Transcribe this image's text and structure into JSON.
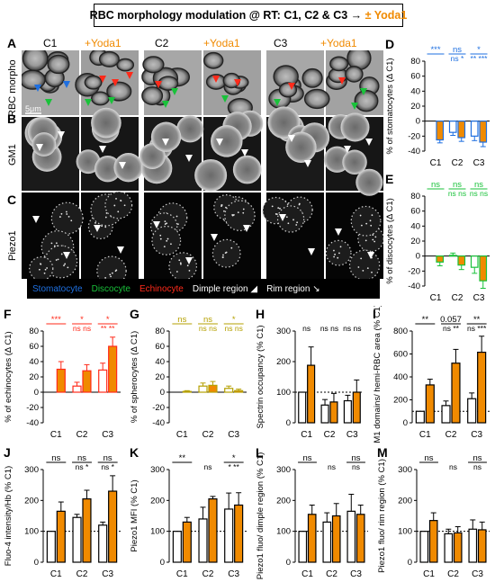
{
  "title": {
    "prefix": "RBC morphology modulation @ RT: C1, C2 & C3 → ",
    "highlight": "± Yoda1"
  },
  "panel_letters": [
    "A",
    "B",
    "C",
    "D",
    "E",
    "F",
    "G",
    "H",
    "I",
    "J",
    "K",
    "L",
    "M"
  ],
  "columns": [
    "C1",
    "+Yoda1",
    "C2",
    "+Yoda1",
    "C3",
    "+Yoda1"
  ],
  "rows": [
    "RBC morpho",
    "GM1",
    "Piezo1"
  ],
  "scale_label": "5μm",
  "legend": {
    "stomatocyte": "Stomatocyte",
    "discocyte": "Discocyte",
    "echinocyte": "Echinocyte",
    "dimple": "Dimple region",
    "rim": "Rim region"
  },
  "colors": {
    "control": "#ffffff",
    "yoda1": "#f08a00",
    "stomatocyte": "#1e6fe0",
    "discocyte": "#19c23a",
    "echinocyte": "#ff2a1a",
    "spherocyte": "#b5a000"
  },
  "chart_data": [
    {
      "id": "D",
      "type": "bar",
      "categories": [
        "C1",
        "C2",
        "C3"
      ],
      "ylabel": "% of stomatocytes (Δ C1)",
      "ylim": [
        -40,
        80
      ],
      "yticks": [
        -40,
        -20,
        0,
        20,
        40,
        60,
        80
      ],
      "baseline": 0,
      "series": [
        {
          "values": [
            0,
            -15,
            -20
          ],
          "err": [
            0,
            4,
            6
          ]
        },
        {
          "values": [
            -25,
            -22,
            -28
          ],
          "err": [
            4,
            5,
            6
          ]
        }
      ],
      "sig_top": [
        "***",
        "ns",
        "*"
      ],
      "sig_bottom": [
        "",
        "ns *",
        "** ***"
      ],
      "sig_color": "#1e6fe0",
      "bar_color": "#1e6fe0",
      "fill2": "#f08a00"
    },
    {
      "id": "E",
      "type": "bar",
      "categories": [
        "C1",
        "C2",
        "C3"
      ],
      "ylabel": "% of discocytes (Δ C1)",
      "ylim": [
        -40,
        80
      ],
      "yticks": [
        -40,
        -20,
        0,
        20,
        40,
        60,
        80
      ],
      "baseline": 0,
      "series": [
        {
          "values": [
            0,
            1,
            -15
          ],
          "err": [
            0,
            3,
            8
          ]
        },
        {
          "values": [
            -8,
            -12,
            -33
          ],
          "err": [
            5,
            6,
            10
          ]
        }
      ],
      "sig_top": [
        "ns",
        "ns",
        "ns"
      ],
      "sig_bottom": [
        "",
        "ns ns",
        "ns ns"
      ],
      "sig_color": "#19c23a",
      "bar_color": "#19c23a",
      "fill2": "#f08a00"
    },
    {
      "id": "F",
      "type": "bar",
      "categories": [
        "C1",
        "C2",
        "C3"
      ],
      "ylabel": "% of echinocytes (Δ C1)",
      "ylim": [
        -40,
        80
      ],
      "yticks": [
        -40,
        -20,
        0,
        20,
        40,
        60,
        80
      ],
      "baseline": 0,
      "series": [
        {
          "values": [
            0,
            8,
            29
          ],
          "err": [
            0,
            5,
            9
          ]
        },
        {
          "values": [
            30,
            28,
            60
          ],
          "err": [
            10,
            8,
            12
          ]
        }
      ],
      "sig_top": [
        "***",
        "*",
        "*"
      ],
      "sig_bottom": [
        "",
        "ns ns",
        "** **"
      ],
      "sig_color": "#ff2a1a",
      "bar_color": "#ff2a1a",
      "fill2": "#f08a00"
    },
    {
      "id": "G",
      "type": "bar",
      "categories": [
        "C1",
        "C2",
        "C3"
      ],
      "ylabel": "% of spherocytes (Δ C1)",
      "ylim": [
        -40,
        80
      ],
      "yticks": [
        -40,
        -20,
        0,
        20,
        40,
        60,
        80
      ],
      "baseline": 0,
      "series": [
        {
          "values": [
            0,
            8,
            5
          ],
          "err": [
            0,
            4,
            3
          ]
        },
        {
          "values": [
            1,
            9,
            2
          ],
          "err": [
            1,
            5,
            2
          ]
        }
      ],
      "sig_top": [
        "ns",
        "ns",
        "*"
      ],
      "sig_bottom": [
        "",
        "ns ns",
        "ns ns"
      ],
      "sig_color": "#b5a000",
      "bar_color": "#b5a000",
      "fill2": "#f08a00"
    },
    {
      "id": "H",
      "type": "bar",
      "categories": [
        "C1",
        "C2",
        "C3"
      ],
      "ylabel": "Spectrin occupancy (% C1)",
      "ylim": [
        0,
        300
      ],
      "yticks": [
        0,
        100,
        200,
        300
      ],
      "baseline": 100,
      "series": [
        {
          "values": [
            100,
            58,
            72
          ],
          "err": [
            0,
            18,
            18
          ]
        },
        {
          "values": [
            188,
            68,
            100
          ],
          "err": [
            60,
            28,
            40
          ]
        }
      ],
      "sig_top": [
        "",
        "",
        ""
      ],
      "sig_bottom": [
        "ns",
        "ns ns",
        "ns ns"
      ],
      "sig_color": "#000000",
      "bar_color": "#000000",
      "fill2": "#f08a00"
    },
    {
      "id": "I",
      "type": "bar",
      "categories": [
        "C1",
        "C2",
        "C3"
      ],
      "ylabel": "GM1 domains/ hemi-RBC area (% C1)",
      "ylim": [
        0,
        800
      ],
      "yticks": [
        0,
        200,
        400,
        600,
        800
      ],
      "baseline": 100,
      "series": [
        {
          "values": [
            100,
            150,
            210
          ],
          "err": [
            0,
            40,
            50
          ]
        },
        {
          "values": [
            330,
            520,
            615
          ],
          "err": [
            50,
            120,
            140
          ]
        }
      ],
      "sig_top": [
        "**",
        "0.057",
        "**"
      ],
      "sig_bottom": [
        "",
        "ns **",
        "ns ***"
      ],
      "sig_color": "#000000",
      "bar_color": "#000000",
      "fill2": "#f08a00"
    },
    {
      "id": "J",
      "type": "bar",
      "categories": [
        "C1",
        "C2",
        "C3"
      ],
      "ylabel": "Fluo-4 intensity/Hb (% C1)",
      "ylim": [
        0,
        300
      ],
      "yticks": [
        0,
        100,
        200,
        300
      ],
      "baseline": 100,
      "series": [
        {
          "values": [
            100,
            145,
            120
          ],
          "err": [
            0,
            10,
            10
          ]
        },
        {
          "values": [
            165,
            205,
            230
          ],
          "err": [
            30,
            28,
            50
          ]
        }
      ],
      "sig_top": [
        "ns",
        "ns",
        "ns"
      ],
      "sig_bottom": [
        "",
        "ns *",
        "ns *"
      ],
      "sig_color": "#000000",
      "bar_color": "#000000",
      "fill2": "#f08a00"
    },
    {
      "id": "K",
      "type": "bar",
      "categories": [
        "C1",
        "C2",
        "C3"
      ],
      "ylabel": "Piezo1 MFI (% C1)",
      "ylim": [
        0,
        300
      ],
      "yticks": [
        0,
        100,
        200,
        300
      ],
      "baseline": 100,
      "series": [
        {
          "values": [
            100,
            140,
            172
          ],
          "err": [
            0,
            38,
            52
          ]
        },
        {
          "values": [
            130,
            205,
            185
          ],
          "err": [
            15,
            8,
            40
          ]
        }
      ],
      "sig_top": [
        "**",
        "",
        "*"
      ],
      "sig_bottom": [
        "",
        "ns",
        "* **"
      ],
      "sig_color": "#000000",
      "bar_color": "#000000",
      "fill2": "#f08a00"
    },
    {
      "id": "L",
      "type": "bar",
      "categories": [
        "C1",
        "C2",
        "C3"
      ],
      "ylabel": "Piezo1 fluo/ dimple region (% C1)",
      "ylim": [
        0,
        300
      ],
      "yticks": [
        0,
        100,
        200,
        300
      ],
      "baseline": 100,
      "series": [
        {
          "values": [
            100,
            130,
            165
          ],
          "err": [
            0,
            30,
            55
          ]
        },
        {
          "values": [
            155,
            150,
            155
          ],
          "err": [
            30,
            40,
            30
          ]
        }
      ],
      "sig_top": [
        "ns",
        "",
        "ns"
      ],
      "sig_bottom": [
        "",
        "ns",
        "ns"
      ],
      "sig_color": "#000000",
      "bar_color": "#000000",
      "fill2": "#f08a00"
    },
    {
      "id": "M",
      "type": "bar",
      "categories": [
        "C1",
        "C2",
        "C3"
      ],
      "ylabel": "Piezo1 fluo/ rim region (% C1)",
      "ylim": [
        0,
        300
      ],
      "yticks": [
        0,
        100,
        200,
        300
      ],
      "baseline": 100,
      "series": [
        {
          "values": [
            100,
            92,
            107
          ],
          "err": [
            0,
            15,
            30
          ]
        },
        {
          "values": [
            135,
            95,
            105
          ],
          "err": [
            25,
            20,
            25
          ]
        }
      ],
      "sig_top": [
        "ns",
        "",
        "ns"
      ],
      "sig_bottom": [
        "",
        "ns",
        "ns"
      ],
      "sig_color": "#000000",
      "bar_color": "#000000",
      "fill2": "#f08a00"
    }
  ]
}
